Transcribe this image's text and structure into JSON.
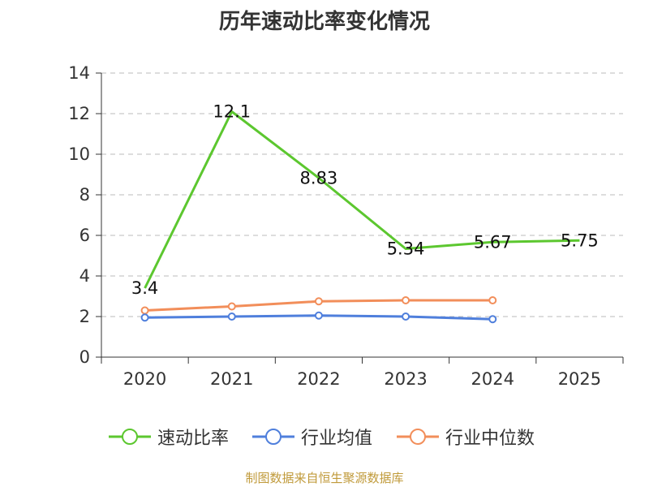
{
  "title": "历年速动比率变化情况",
  "footer": "制图数据来自恒生聚源数据库",
  "colors": {
    "axis": "#333333",
    "grid": "#bbbbbb"
  },
  "chart_data": {
    "type": "line",
    "categories": [
      "2020",
      "2021",
      "2022",
      "2023",
      "2024",
      "2025"
    ],
    "ylim": [
      0,
      14
    ],
    "yticks": [
      0,
      2,
      4,
      6,
      8,
      10,
      12,
      14
    ],
    "grid": true,
    "legend_position": "bottom",
    "series": [
      {
        "name": "速动比率",
        "color": "#5cc72f",
        "values": [
          3.4,
          12.1,
          8.83,
          5.34,
          5.67,
          5.75
        ],
        "labels": [
          "3.4",
          "12.1",
          "8.83",
          "5.34",
          "5.67",
          "5.75"
        ],
        "show_labels": true,
        "markers": false
      },
      {
        "name": "行业均值",
        "color": "#4f7fdc",
        "values": [
          1.95,
          2.0,
          2.05,
          2.0,
          1.87,
          null
        ],
        "show_labels": false,
        "markers": true
      },
      {
        "name": "行业中位数",
        "color": "#f28e5a",
        "values": [
          2.3,
          2.5,
          2.75,
          2.8,
          2.8,
          null
        ],
        "show_labels": false,
        "markers": true
      }
    ]
  }
}
